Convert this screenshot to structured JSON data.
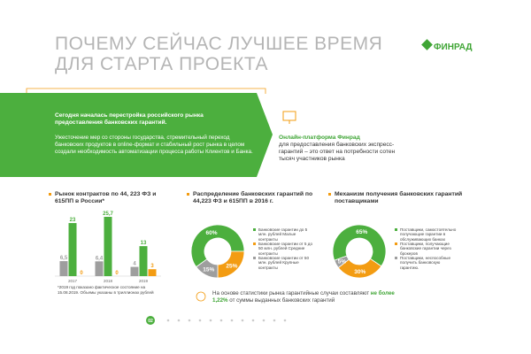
{
  "header": {
    "title": "ПОЧЕМУ СЕЙЧАС ЛУЧШЕЕ ВРЕМЯ ДЛЯ СТАРТА ПРОЕКТА",
    "logo": "ФИНРАД"
  },
  "banner": {
    "heading": "Сегодня началась перестройка российского рынка предоставления банковских гарантий.",
    "text": "Ужесточение мер со стороны государства, стремительный переход банковских продуктов в online-формат и стабильный рост рынка в целом создали необходимость автоматизации процесса работы Клиентов и Банка."
  },
  "platform": {
    "name": "Онлайн-платформа Финрад",
    "text": "для предоставления банковских экспресс-гарантий – это ответ на потребности сотен тысяч участников рынка"
  },
  "chart_data": [
    {
      "type": "bar",
      "title": "Рынок контрактов по 44, 223 ФЗ и 615ПП в России*",
      "categories": [
        "2017",
        "2018",
        "2019"
      ],
      "series": [
        {
          "color": "#9e9e9e",
          "values": [
            6.5,
            6.4,
            4
          ],
          "value_labels": [
            "6,5",
            "6,4",
            "4"
          ]
        },
        {
          "color": "#4caf3e",
          "values": [
            23,
            25.7,
            13
          ],
          "value_labels": [
            "23",
            "25,7",
            "13"
          ]
        },
        {
          "color": "#f39c12",
          "values": [
            0,
            0,
            3
          ]
        }
      ],
      "footnote": "*2019 год показано фактическое состояние на 15.08.2019. Объемы указаны в триллионах рублей"
    },
    {
      "type": "pie",
      "title": "Распределение банковских гарантий по 44,223 ФЗ и 615ПП в 2016 г.",
      "categories": [
        "Банковские гарантии до 5 млн. рублей Малые контракты",
        "Банковские гарантии от 5 до 50 млн. рублей Средние контракты",
        "Банковские гарантии от 50 млн. рублей Крупные контракты"
      ],
      "values": [
        60,
        25,
        15
      ],
      "value_labels": [
        "60%",
        "25%",
        "15%"
      ],
      "colors": [
        "#4caf3e",
        "#f39c12",
        "#9e9e9e"
      ]
    },
    {
      "type": "pie",
      "title": "Механизм получения банковских гарантий поставщиками",
      "categories": [
        "Поставщики, самостоятельно получающие гарантии в обслуживающих банках",
        "Поставщики, получающие банковские гарантии через брокеров",
        "Поставщики, неспособные получить банковскую гарантию."
      ],
      "values": [
        65,
        30,
        5
      ],
      "value_labels": [
        "65%",
        "30%",
        "5%"
      ],
      "colors": [
        "#4caf3e",
        "#f39c12",
        "#9e9e9e"
      ]
    }
  ],
  "note": {
    "parts": [
      "На основе статистики рынка гарантийные случаи составляют",
      "не более 1,22%",
      "от суммы выданных банковских гарантий"
    ]
  },
  "page": "02"
}
